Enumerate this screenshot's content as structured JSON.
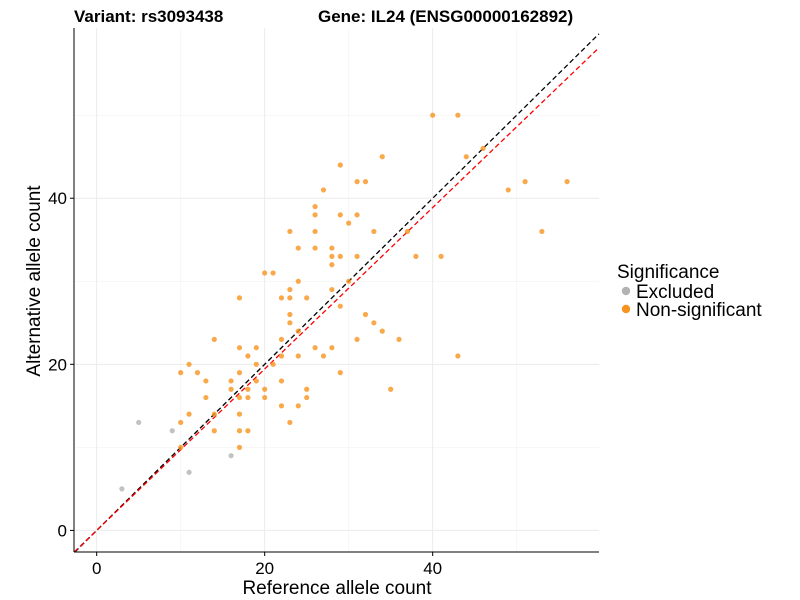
{
  "titles": {
    "variant": "Variant: rs3093438",
    "gene": "Gene: IL24 (ENSG00000162892)"
  },
  "legend": {
    "title": "Significance",
    "entries": [
      {
        "label": "Excluded",
        "color": "#b3b3b3"
      },
      {
        "label": "Non-significant",
        "color": "#f7941d"
      }
    ]
  },
  "chart_data": {
    "type": "scatter",
    "xlabel": "Reference allele count",
    "ylabel": "Alternative allele count",
    "xlim": [
      -2.7,
      59.8
    ],
    "ylim": [
      -2.6,
      60.5
    ],
    "xticks": [
      0,
      20,
      40
    ],
    "yticks": [
      0,
      20,
      40
    ],
    "grid": true,
    "legend_position": "right",
    "colors": {
      "excluded": "#b3b3b3",
      "nonsignificant": "#f7941d",
      "identity_line": "#000000",
      "fit_line": "#ff0000"
    },
    "reference_lines": [
      {
        "name": "identity",
        "slope": 1.0,
        "intercept": 0.0,
        "color": "#000000",
        "dash": true
      },
      {
        "name": "fit",
        "slope": 0.972,
        "intercept": 0.0,
        "color": "#ff0000",
        "dash": true
      }
    ],
    "series": [
      {
        "name": "Excluded",
        "color": "#b3b3b3",
        "points": [
          [
            3,
            5
          ],
          [
            5,
            13
          ],
          [
            9,
            12
          ],
          [
            11,
            7
          ],
          [
            16,
            9
          ]
        ]
      },
      {
        "name": "Non-significant",
        "color": "#f7941d",
        "points": [
          [
            10,
            10
          ],
          [
            10,
            13
          ],
          [
            10,
            19
          ],
          [
            11,
            14
          ],
          [
            11,
            20
          ],
          [
            12,
            19
          ],
          [
            13,
            16
          ],
          [
            13,
            18
          ],
          [
            14,
            12
          ],
          [
            14,
            14
          ],
          [
            14,
            23
          ],
          [
            16,
            17
          ],
          [
            16,
            18
          ],
          [
            17,
            10
          ],
          [
            17,
            12
          ],
          [
            17,
            14
          ],
          [
            17,
            16
          ],
          [
            17,
            19
          ],
          [
            17,
            22
          ],
          [
            17,
            28
          ],
          [
            18,
            12
          ],
          [
            18,
            16
          ],
          [
            18,
            21
          ],
          [
            18,
            17
          ],
          [
            19,
            18
          ],
          [
            19,
            20
          ],
          [
            19,
            22
          ],
          [
            20,
            16
          ],
          [
            20,
            17
          ],
          [
            20,
            31
          ],
          [
            21,
            20
          ],
          [
            21,
            31
          ],
          [
            22,
            15
          ],
          [
            22,
            18
          ],
          [
            22,
            23
          ],
          [
            22,
            28
          ],
          [
            22,
            21
          ],
          [
            23,
            13
          ],
          [
            23,
            26
          ],
          [
            23,
            25
          ],
          [
            23,
            28
          ],
          [
            23,
            29
          ],
          [
            23,
            36
          ],
          [
            24,
            15
          ],
          [
            24,
            21
          ],
          [
            24,
            24
          ],
          [
            24,
            34
          ],
          [
            24,
            30
          ],
          [
            25,
            16
          ],
          [
            25,
            17
          ],
          [
            25,
            28
          ],
          [
            26,
            22
          ],
          [
            26,
            34
          ],
          [
            26,
            36
          ],
          [
            26,
            38
          ],
          [
            26,
            39
          ],
          [
            27,
            21
          ],
          [
            27,
            41
          ],
          [
            28,
            22
          ],
          [
            28,
            32
          ],
          [
            28,
            33
          ],
          [
            28,
            34
          ],
          [
            28,
            29
          ],
          [
            29,
            19
          ],
          [
            29,
            27
          ],
          [
            29,
            33
          ],
          [
            29,
            38
          ],
          [
            29,
            44
          ],
          [
            30,
            30
          ],
          [
            30,
            37
          ],
          [
            31,
            23
          ],
          [
            31,
            33
          ],
          [
            31,
            38
          ],
          [
            31,
            42
          ],
          [
            32,
            26
          ],
          [
            32,
            42
          ],
          [
            33,
            25
          ],
          [
            33,
            36
          ],
          [
            34,
            24
          ],
          [
            34,
            45
          ],
          [
            35,
            17
          ],
          [
            36,
            23
          ],
          [
            37,
            36
          ],
          [
            38,
            33
          ],
          [
            40,
            50
          ],
          [
            41,
            33
          ],
          [
            43,
            50
          ],
          [
            43,
            21
          ],
          [
            44,
            45
          ],
          [
            46,
            46
          ],
          [
            49,
            41
          ],
          [
            51,
            42
          ],
          [
            53,
            36
          ],
          [
            56,
            42
          ]
        ]
      }
    ]
  }
}
